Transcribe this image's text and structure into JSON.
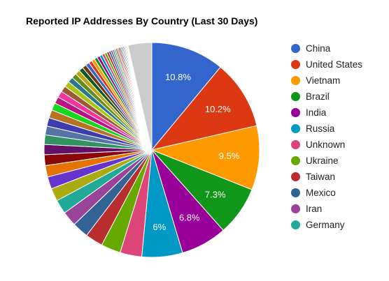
{
  "chart_data": {
    "type": "pie",
    "title": "Reported IP Addresses By Country (Last 30 Days)",
    "legend_position": "right",
    "slices": [
      {
        "name": "China",
        "value": 10.8,
        "label": "10.8%",
        "color": "#3366cc"
      },
      {
        "name": "United States",
        "value": 10.2,
        "label": "10.2%",
        "color": "#dc3912"
      },
      {
        "name": "Vietnam",
        "value": 9.5,
        "label": "9.5%",
        "color": "#ff9900"
      },
      {
        "name": "Brazil",
        "value": 7.3,
        "label": "7.3%",
        "color": "#109618"
      },
      {
        "name": "India",
        "value": 6.8,
        "label": "6.8%",
        "color": "#990099"
      },
      {
        "name": "Russia",
        "value": 6.0,
        "label": "6%",
        "color": "#0099c6"
      },
      {
        "name": "Unknown",
        "value": 3.2,
        "color": "#dd4477"
      },
      {
        "name": "Ukraine",
        "value": 2.9,
        "color": "#66aa00"
      },
      {
        "name": "Taiwan",
        "value": 2.6,
        "color": "#b82e2e"
      },
      {
        "name": "Mexico",
        "value": 2.4,
        "color": "#316395"
      },
      {
        "name": "Iran",
        "value": 2.2,
        "color": "#994499"
      },
      {
        "name": "Germany",
        "value": 2.1,
        "color": "#22aa99"
      },
      {
        "value": 1.9,
        "color": "#aaaa11"
      },
      {
        "value": 1.8,
        "color": "#6633cc"
      },
      {
        "value": 1.7,
        "color": "#e67300"
      },
      {
        "value": 1.6,
        "color": "#8b0707"
      },
      {
        "value": 1.5,
        "color": "#651067"
      },
      {
        "value": 1.4,
        "color": "#329262"
      },
      {
        "value": 1.3,
        "color": "#5574a6"
      },
      {
        "value": 1.25,
        "color": "#3b3eac"
      },
      {
        "value": 1.2,
        "color": "#b77322"
      },
      {
        "value": 1.1,
        "color": "#16d620"
      },
      {
        "value": 1.0,
        "color": "#b91383"
      },
      {
        "value": 0.95,
        "color": "#f4359e"
      },
      {
        "value": 0.9,
        "color": "#9c5935"
      },
      {
        "value": 0.85,
        "color": "#a9c413"
      },
      {
        "value": 0.8,
        "color": "#2a778d"
      },
      {
        "value": 0.75,
        "color": "#668d1c"
      },
      {
        "value": 0.7,
        "color": "#bea413"
      },
      {
        "value": 0.65,
        "color": "#0c5922"
      },
      {
        "value": 0.6,
        "color": "#743411"
      },
      {
        "value": 0.55,
        "color": "#3366cc"
      },
      {
        "value": 0.5,
        "color": "#dc3912"
      },
      {
        "value": 0.48,
        "color": "#ff9900"
      },
      {
        "value": 0.45,
        "color": "#109618"
      },
      {
        "value": 0.42,
        "color": "#990099"
      },
      {
        "value": 0.4,
        "color": "#0099c6"
      },
      {
        "value": 0.38,
        "color": "#dd4477"
      },
      {
        "value": 0.35,
        "color": "#66aa00"
      },
      {
        "value": 0.33,
        "color": "#b82e2e"
      },
      {
        "value": 0.3,
        "color": "#316395"
      },
      {
        "value": 0.28,
        "color": "#994499"
      },
      {
        "value": 0.26,
        "color": "#22aa99"
      },
      {
        "value": 0.24,
        "color": "#aaaa11"
      },
      {
        "value": 0.22,
        "color": "#6633cc"
      },
      {
        "value": 0.2,
        "color": "#e67300"
      },
      {
        "value": 0.19,
        "color": "#8b0707"
      },
      {
        "value": 0.18,
        "color": "#651067"
      },
      {
        "value": 0.17,
        "color": "#329262"
      },
      {
        "value": 0.16,
        "color": "#5574a6"
      },
      {
        "value": 0.15,
        "color": "#3b3eac"
      },
      {
        "value": 0.14,
        "color": "#b77322"
      },
      {
        "value": 0.13,
        "color": "#16d620"
      },
      {
        "value": 0.12,
        "color": "#b91383"
      },
      {
        "value": 0.11,
        "color": "#f4359e"
      },
      {
        "value": 0.1,
        "color": "#9c5935"
      },
      {
        "value": 3.5,
        "color": "#cccccc"
      }
    ]
  }
}
